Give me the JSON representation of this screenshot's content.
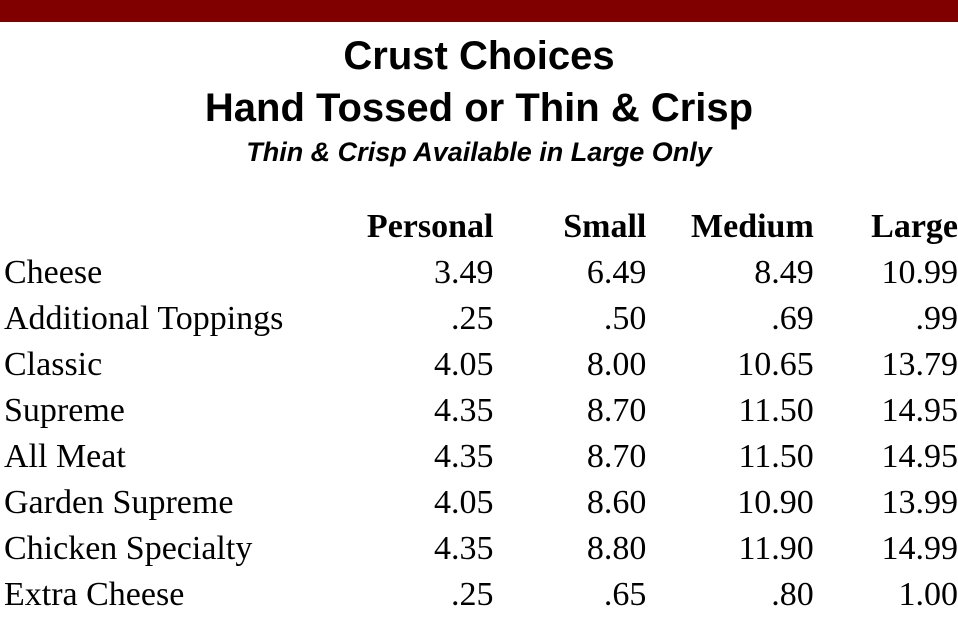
{
  "colors": {
    "top_bar": "#800000"
  },
  "title": {
    "line1": "Crust Choices",
    "line2": "Hand Tossed or Thin & Crisp",
    "subtitle": "Thin & Crisp Available in Large Only"
  },
  "table": {
    "headers": [
      "",
      "Personal",
      "Small",
      "Medium",
      "Large"
    ],
    "rows": [
      {
        "name": "Cheese",
        "personal": "3.49",
        "small": "6.49",
        "medium": "8.49",
        "large": "10.99"
      },
      {
        "name": "Additional Toppings",
        "personal": ".25",
        "small": ".50",
        "medium": ".69",
        "large": ".99"
      },
      {
        "name": "Classic",
        "personal": "4.05",
        "small": "8.00",
        "medium": "10.65",
        "large": "13.79"
      },
      {
        "name": "Supreme",
        "personal": "4.35",
        "small": "8.70",
        "medium": "11.50",
        "large": "14.95"
      },
      {
        "name": "All Meat",
        "personal": "4.35",
        "small": "8.70",
        "medium": "11.50",
        "large": "14.95"
      },
      {
        "name": "Garden Supreme",
        "personal": "4.05",
        "small": "8.60",
        "medium": "10.90",
        "large": "13.99"
      },
      {
        "name": "Chicken Specialty",
        "personal": "4.35",
        "small": "8.80",
        "medium": "11.90",
        "large": "14.99"
      },
      {
        "name": "Extra Cheese",
        "personal": ".25",
        "small": ".65",
        "medium": ".80",
        "large": "1.00"
      }
    ]
  }
}
